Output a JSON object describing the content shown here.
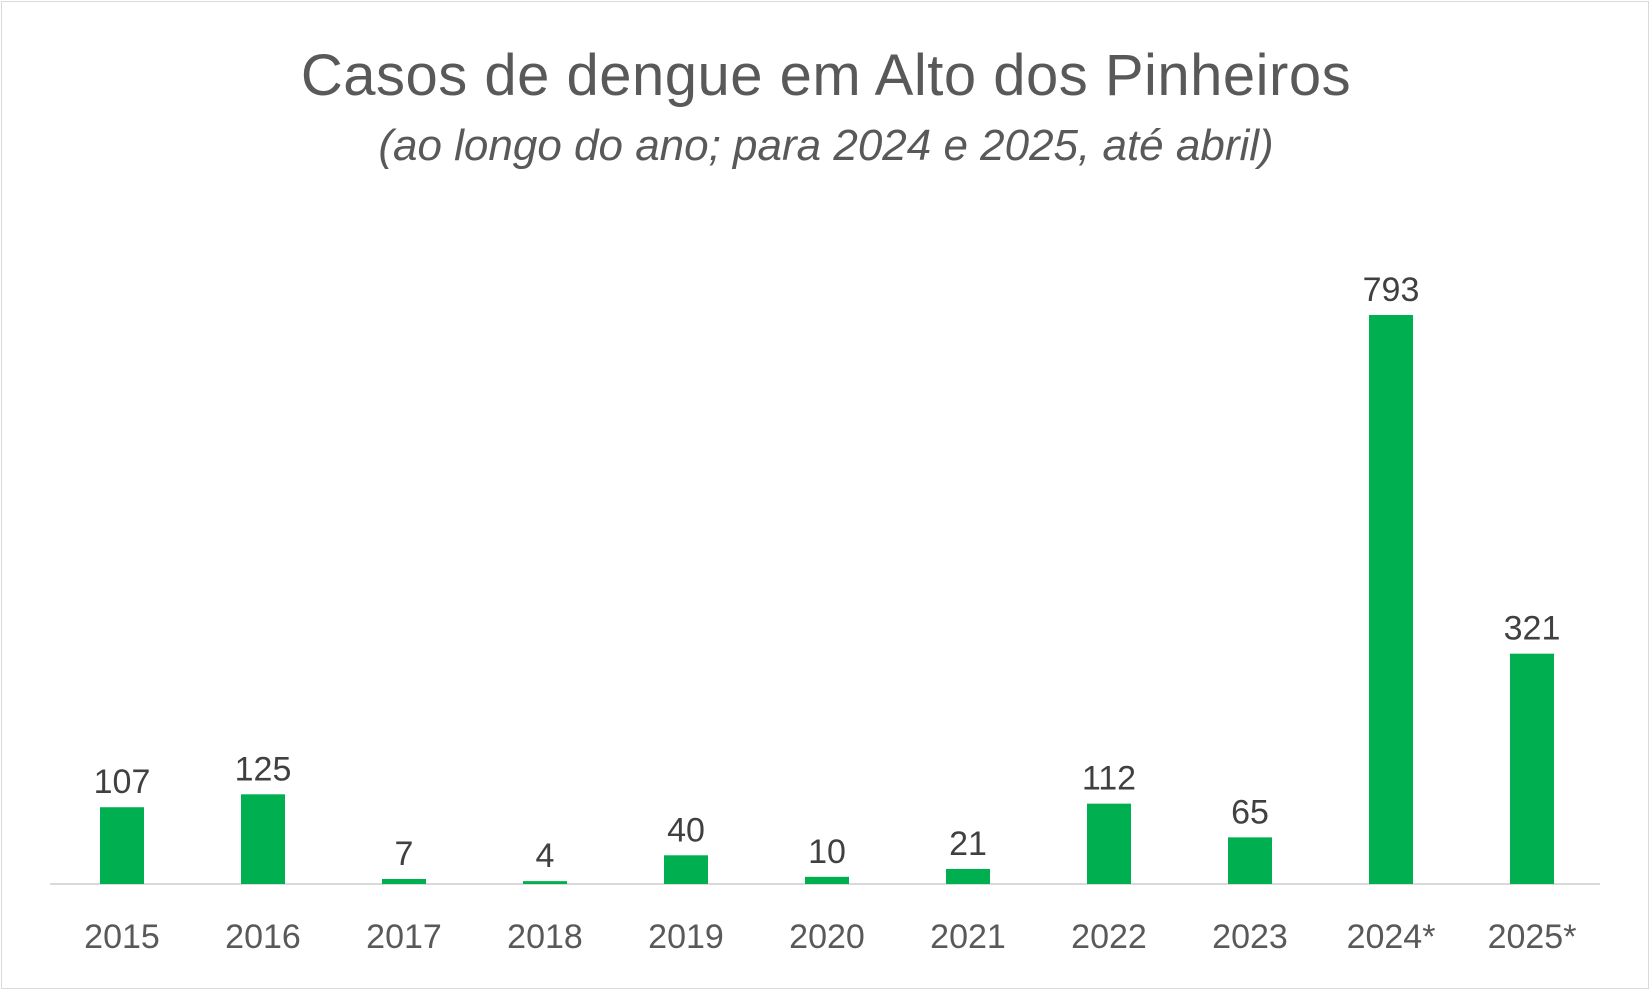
{
  "chart_data": {
    "type": "bar",
    "title": "Casos de dengue em Alto dos Pinheiros",
    "subtitle": "(ao longo do ano; para 2024 e 2025, até abril)",
    "categories": [
      "2015",
      "2016",
      "2017",
      "2018",
      "2019",
      "2020",
      "2021",
      "2022",
      "2023",
      "2024*",
      "2025*"
    ],
    "values": [
      107,
      125,
      7,
      4,
      40,
      10,
      21,
      112,
      65,
      793,
      321
    ],
    "data_labels": [
      "107",
      "125",
      "7",
      "4",
      "40",
      "10",
      "21",
      "112",
      "65",
      "793",
      "321"
    ],
    "xlabel": "",
    "ylabel": "",
    "ylim": [
      0,
      793
    ],
    "grid": false,
    "legend": "none",
    "bar_color": "#00B050",
    "axis_color": "#d9d9d9"
  }
}
